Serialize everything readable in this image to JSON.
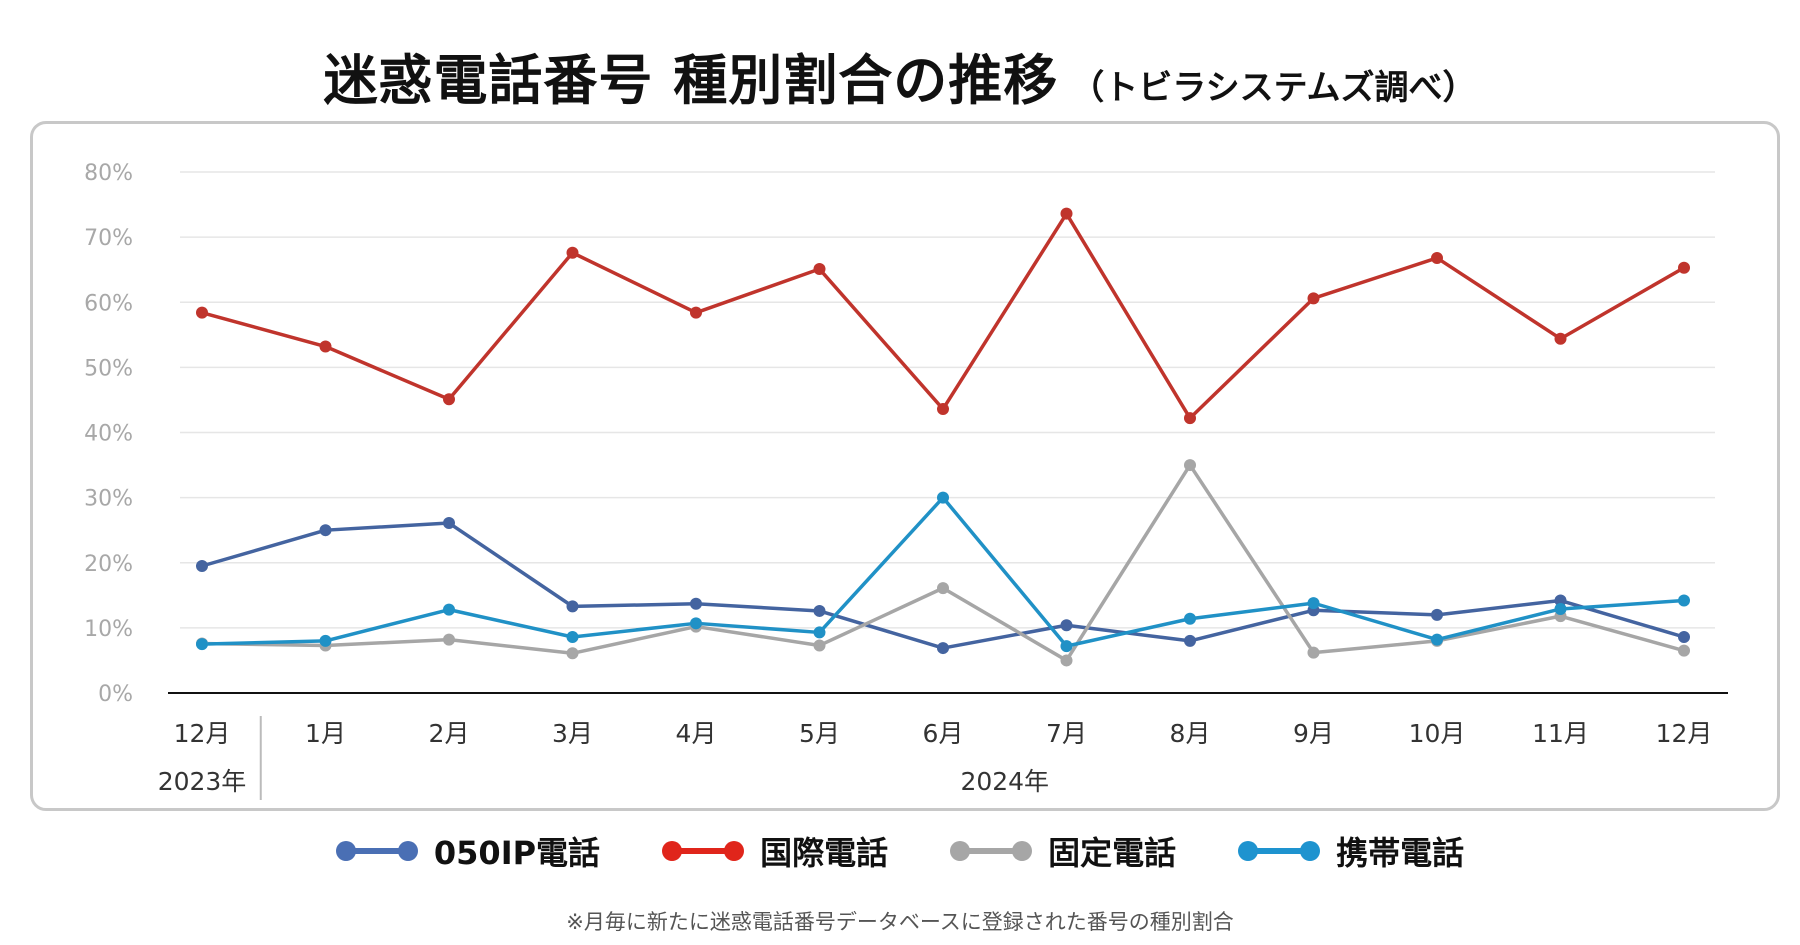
{
  "title": "迷惑電話番号 種別割合の推移",
  "subtitle": "（トビラシステムズ調べ）",
  "footnote": "※月毎に新たに迷惑電話番号データベースに登録された番号の種別割合",
  "colors": {
    "050ip": "#4464a0",
    "international": "#c0342c",
    "landline": "#a6a6a6",
    "mobile": "#2091c6",
    "legend_international": "#e0251b",
    "legend_mobile": "#1e93cf",
    "legend_050ip": "#4a6fb4"
  },
  "legend": [
    {
      "label": "050IP電話",
      "color_key": "legend_050ip"
    },
    {
      "label": "国際電話",
      "color_key": "legend_international"
    },
    {
      "label": "固定電話",
      "color_key": "landline"
    },
    {
      "label": "携帯電話",
      "color_key": "legend_mobile"
    }
  ],
  "chart_data": {
    "type": "line",
    "title": "迷惑電話番号 種別割合の推移",
    "xlabel": "",
    "ylabel": "",
    "ylim": [
      0,
      80
    ],
    "yticks": [
      "0%",
      "10%",
      "20%",
      "30%",
      "40%",
      "50%",
      "60%",
      "70%",
      "80%"
    ],
    "categories": [
      "12月",
      "1月",
      "2月",
      "3月",
      "4月",
      "5月",
      "6月",
      "7月",
      "8月",
      "9月",
      "10月",
      "11月",
      "12月"
    ],
    "year_groups": [
      {
        "label": "2023年",
        "start": 0,
        "end": 0
      },
      {
        "label": "2024年",
        "start": 1,
        "end": 12
      }
    ],
    "grid": true,
    "series": [
      {
        "name": "050IP電話",
        "color_key": "050ip",
        "values": [
          19.5,
          25.0,
          26.1,
          13.3,
          13.7,
          12.6,
          6.9,
          10.4,
          8.0,
          12.7,
          12.0,
          14.2,
          8.6
        ]
      },
      {
        "name": "国際電話",
        "color_key": "international",
        "values": [
          58.4,
          53.2,
          45.1,
          67.6,
          58.4,
          65.1,
          43.6,
          73.6,
          42.2,
          60.6,
          66.8,
          54.4,
          65.3
        ]
      },
      {
        "name": "固定電話",
        "color_key": "landline",
        "values": [
          7.6,
          7.3,
          8.2,
          6.1,
          10.2,
          7.3,
          16.1,
          5.0,
          35.0,
          6.2,
          8.0,
          11.8,
          6.5
        ]
      },
      {
        "name": "携帯電話",
        "color_key": "mobile",
        "values": [
          7.5,
          8.0,
          12.8,
          8.6,
          10.7,
          9.3,
          30.0,
          7.2,
          11.4,
          13.8,
          8.2,
          12.9,
          14.2
        ]
      }
    ]
  }
}
